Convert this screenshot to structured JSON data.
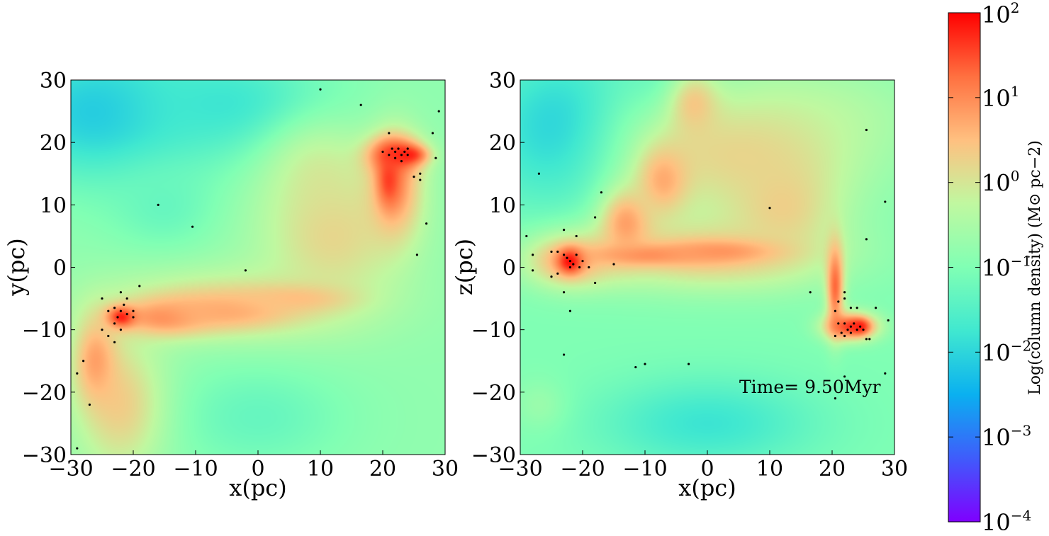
{
  "colors": {
    "colormap": [
      "#7f00ff",
      "#3f5cfb",
      "#0ab0f0",
      "#40e8d0",
      "#80ffb4",
      "#c0f8a0",
      "#ffc080",
      "#ff7040",
      "#ff0000"
    ],
    "sink_particles": "#000000"
  },
  "chart_data": [
    {
      "type": "heatmap",
      "title": "",
      "xlabel": "x(pc)",
      "ylabel": "y(pc)",
      "xlim": [
        -30,
        30
      ],
      "ylim": [
        -30,
        30
      ],
      "xticks": [
        "−30",
        "−20",
        "−10",
        "0",
        "10",
        "20",
        "30"
      ],
      "yticks": [
        "30",
        "20",
        "10",
        "0",
        "−10",
        "−20",
        "−30"
      ],
      "background_log10": -0.8,
      "blobs": [
        {
          "x": -25,
          "y": 25,
          "sx": 12,
          "sy": 8,
          "v": -2.2
        },
        {
          "x": -5,
          "y": 26,
          "sx": 12,
          "sy": 6,
          "v": -1.8
        },
        {
          "x": -15,
          "y": 10,
          "sx": 6,
          "sy": 5,
          "v": -1.3
        },
        {
          "x": 10,
          "y": 15,
          "sx": 6,
          "sy": 6,
          "v": -0.2
        },
        {
          "x": 0,
          "y": -24,
          "sx": 10,
          "sy": 6,
          "v": -1.3
        },
        {
          "x": -22,
          "y": -22,
          "sx": 5,
          "sy": 8,
          "v": 0.3
        },
        {
          "x": 12,
          "y": 5,
          "sx": 8,
          "sy": 8,
          "v": 0.2
        },
        {
          "x": -5,
          "y": -6,
          "sx": 14,
          "sy": 4,
          "v": 0.2
        },
        {
          "x": 22,
          "y": 13,
          "sx": 3,
          "sy": 6,
          "v": 0.9
        },
        {
          "x": 22,
          "y": 18,
          "sx": 3,
          "sy": 2,
          "v": 1.6
        },
        {
          "x": 24,
          "y": 18,
          "sx": 2,
          "sy": 1,
          "v": 1.8
        },
        {
          "x": 21,
          "y": 14,
          "sx": 1.3,
          "sy": 3,
          "v": 1.6
        },
        {
          "x": -15,
          "y": -8,
          "sx": 5,
          "sy": 2,
          "v": 1.0
        },
        {
          "x": -5,
          "y": -7,
          "sx": 7,
          "sy": 2,
          "v": 0.7
        },
        {
          "x": 6,
          "y": -5,
          "sx": 6,
          "sy": 1.5,
          "v": 0.5
        },
        {
          "x": -22,
          "y": -8,
          "sx": 1.6,
          "sy": 1.2,
          "v": 1.9
        },
        {
          "x": -26,
          "y": -15,
          "sx": 2.5,
          "sy": 5,
          "v": 0.8
        }
      ],
      "sinks": [
        [
          -22,
          -7
        ],
        [
          -23,
          -6.5
        ],
        [
          -21,
          -7.5
        ],
        [
          -22.5,
          -8
        ],
        [
          -21.5,
          -6
        ],
        [
          -20,
          -7
        ],
        [
          -24,
          -7
        ],
        [
          -23,
          -9
        ],
        [
          -22,
          -10
        ],
        [
          -24,
          -11
        ],
        [
          -23,
          -12
        ],
        [
          -25,
          -10
        ],
        [
          -21,
          -5
        ],
        [
          -22,
          -4
        ],
        [
          -19,
          -3
        ],
        [
          -20,
          -8
        ],
        [
          -25,
          -5
        ],
        [
          -28,
          -15
        ],
        [
          -29,
          -17
        ],
        [
          -27,
          -22
        ],
        [
          -29,
          -29
        ],
        [
          21,
          18
        ],
        [
          22,
          18.5
        ],
        [
          23,
          18
        ],
        [
          22.5,
          19
        ],
        [
          23.5,
          18.5
        ],
        [
          24,
          19
        ],
        [
          21.5,
          19
        ],
        [
          22,
          17.5
        ],
        [
          23,
          17
        ],
        [
          24,
          18
        ],
        [
          20,
          18.5
        ],
        [
          21,
          21.5
        ],
        [
          25,
          14.5
        ],
        [
          26,
          14
        ],
        [
          26,
          15
        ],
        [
          27,
          7
        ],
        [
          25.5,
          2
        ],
        [
          28,
          21.5
        ],
        [
          28.5,
          17.5
        ],
        [
          29,
          25
        ],
        [
          16.5,
          26
        ],
        [
          10,
          28.5
        ],
        [
          -16,
          10
        ],
        [
          -10.5,
          6.5
        ],
        [
          -2,
          -0.5
        ]
      ]
    },
    {
      "type": "heatmap",
      "title": "",
      "xlabel": "x(pc)",
      "ylabel": "z(pc)",
      "xlim": [
        -30,
        30
      ],
      "ylim": [
        -30,
        30
      ],
      "xticks": [
        "−30",
        "−20",
        "−10",
        "0",
        "10",
        "20",
        "30"
      ],
      "yticks": [
        "30",
        "20",
        "10",
        "0",
        "−10",
        "−20",
        "−30"
      ],
      "annotation": "Time= 9.50Myr",
      "background_log10": -1.0,
      "blobs": [
        {
          "x": -23,
          "y": 22,
          "sx": 9,
          "sy": 9,
          "v": -2.2
        },
        {
          "x": -5,
          "y": 27,
          "sx": 6,
          "sy": 5,
          "v": -1.8
        },
        {
          "x": 20,
          "y": 25,
          "sx": 12,
          "sy": 6,
          "v": -0.6
        },
        {
          "x": 0,
          "y": -25,
          "sx": 12,
          "sy": 5,
          "v": -1.8
        },
        {
          "x": -27,
          "y": -22,
          "sx": 3,
          "sy": 3,
          "v": -0.7
        },
        {
          "x": 5,
          "y": 18,
          "sx": 14,
          "sy": 8,
          "v": 0.2
        },
        {
          "x": -2,
          "y": 26,
          "sx": 3,
          "sy": 4,
          "v": 0.4
        },
        {
          "x": 0,
          "y": 2,
          "sx": 14,
          "sy": 4,
          "v": 0.4
        },
        {
          "x": 12,
          "y": 10,
          "sx": 6,
          "sy": 6,
          "v": 0.3
        },
        {
          "x": -22,
          "y": 1,
          "sx": 5,
          "sy": 3,
          "v": 0.7
        },
        {
          "x": -22,
          "y": 1,
          "sx": 1.4,
          "sy": 1.4,
          "v": 2.0
        },
        {
          "x": -10,
          "y": 2,
          "sx": 6,
          "sy": 1.2,
          "v": 1.0
        },
        {
          "x": 2,
          "y": 2.5,
          "sx": 6,
          "sy": 1.3,
          "v": 0.9
        },
        {
          "x": -13,
          "y": 7,
          "sx": 3,
          "sy": 4,
          "v": 0.8
        },
        {
          "x": -7,
          "y": 14,
          "sx": 3,
          "sy": 4,
          "v": 0.7
        },
        {
          "x": 20.5,
          "y": -3,
          "sx": 1,
          "sy": 5,
          "v": 1.3
        },
        {
          "x": 23,
          "y": -9.5,
          "sx": 3,
          "sy": 1.6,
          "v": 1.6
        },
        {
          "x": 24.5,
          "y": -9.5,
          "sx": 1,
          "sy": 0.8,
          "v": 1.8
        }
      ],
      "sinks": [
        [
          -22,
          1
        ],
        [
          -22.5,
          1.5
        ],
        [
          -21.5,
          0.5
        ],
        [
          -22,
          0
        ],
        [
          -23,
          2
        ],
        [
          -21,
          2
        ],
        [
          -20,
          1
        ],
        [
          -20.5,
          0
        ],
        [
          -24,
          2.5
        ],
        [
          -25,
          2.5
        ],
        [
          -24,
          -1
        ],
        [
          -25,
          -1.5
        ],
        [
          -28,
          2
        ],
        [
          -29,
          5
        ],
        [
          -23,
          6
        ],
        [
          -23,
          -4
        ],
        [
          -22,
          -7
        ],
        [
          -21,
          5
        ],
        [
          -19,
          0
        ],
        [
          -18,
          -2.5
        ],
        [
          -15,
          0.5
        ],
        [
          -17,
          12
        ],
        [
          -18,
          8
        ],
        [
          -27,
          15
        ],
        [
          -28,
          -0.5
        ],
        [
          -23,
          -14
        ],
        [
          22,
          -9
        ],
        [
          23,
          -9.5
        ],
        [
          24,
          -10
        ],
        [
          23.5,
          -9
        ],
        [
          22.5,
          -10
        ],
        [
          21.5,
          -10.5
        ],
        [
          24.5,
          -9.5
        ],
        [
          25,
          -10
        ],
        [
          23,
          -10.5
        ],
        [
          21,
          -9
        ],
        [
          20.5,
          -7
        ],
        [
          21,
          -5.5
        ],
        [
          22,
          -5
        ],
        [
          20.5,
          -11
        ],
        [
          22,
          -11
        ],
        [
          25.5,
          -11.5
        ],
        [
          26,
          -11.5
        ],
        [
          27,
          -6.5
        ],
        [
          29,
          -8.5
        ],
        [
          16.5,
          -4
        ],
        [
          22,
          -4
        ],
        [
          23,
          -6.5
        ],
        [
          24,
          -6.5
        ],
        [
          25.5,
          4.5
        ],
        [
          28.5,
          10.5
        ],
        [
          10,
          9.5
        ],
        [
          25.5,
          22
        ],
        [
          28.5,
          -17
        ],
        [
          22,
          -17.5
        ],
        [
          20.5,
          -21
        ],
        [
          -11.5,
          -16
        ],
        [
          -10,
          -15.5
        ],
        [
          -3,
          -15.5
        ]
      ]
    }
  ],
  "colorbar": {
    "label": "Log(column density) (M⊙ pc−2)",
    "range_log10": [
      -4,
      2
    ],
    "ticks": [
      {
        "base": "10",
        "exp": "2"
      },
      {
        "base": "10",
        "exp": "1"
      },
      {
        "base": "10",
        "exp": "0"
      },
      {
        "base": "10",
        "exp": "−1"
      },
      {
        "base": "10",
        "exp": "−2"
      },
      {
        "base": "10",
        "exp": "−3"
      },
      {
        "base": "10",
        "exp": "−4"
      }
    ]
  }
}
